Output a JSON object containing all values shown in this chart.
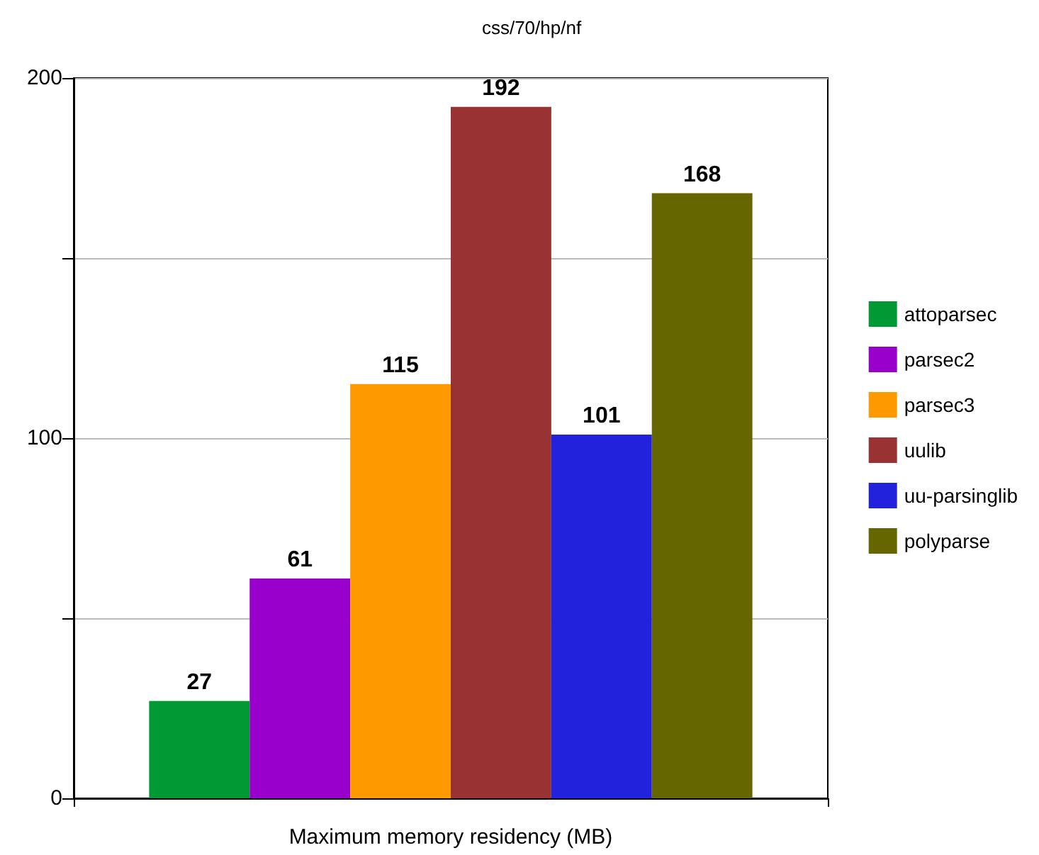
{
  "chart_data": {
    "type": "bar",
    "title": "css/70/hp/nf",
    "xlabel": "Maximum memory residency (MB)",
    "categories": [
      null
    ],
    "series": [
      {
        "name": "attoparsec",
        "color": "#009933",
        "values": [
          27
        ]
      },
      {
        "name": "parsec2",
        "color": "#9900cc",
        "values": [
          61
        ]
      },
      {
        "name": "parsec3",
        "color": "#ff9900",
        "values": [
          115
        ]
      },
      {
        "name": "uulib",
        "color": "#993333",
        "values": [
          192
        ]
      },
      {
        "name": "uu-parsinglib",
        "color": "#2222dd",
        "values": [
          101
        ]
      },
      {
        "name": "polyparse",
        "color": "#666600",
        "values": [
          168
        ]
      }
    ],
    "ylim": [
      0,
      200
    ],
    "yticks": [
      0,
      {
        "value": 50,
        "label": null
      },
      100,
      {
        "value": 150,
        "label": null
      },
      200
    ],
    "grid": true,
    "legend": "right",
    "data_labels": true
  }
}
